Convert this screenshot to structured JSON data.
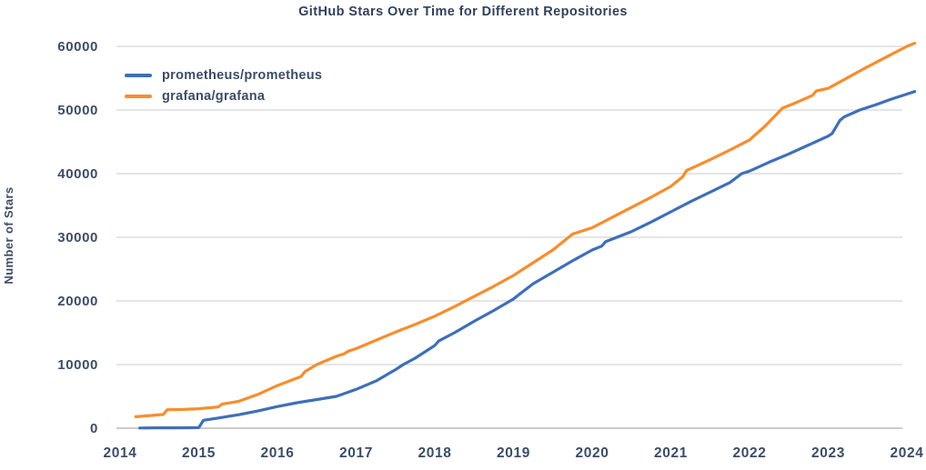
{
  "theme": {
    "background": "#ffffff",
    "title_color": "#34415a",
    "text_color": "#3d4c66",
    "grid_color": "#cbcbcb",
    "axis_color": "#979797"
  },
  "chart_data": {
    "type": "line",
    "title": "GitHub Stars Over Time for Different Repositories",
    "xlabel": "",
    "ylabel": "Number of Stars",
    "x_ticks": [
      2014,
      2015,
      2016,
      2017,
      2018,
      2019,
      2020,
      2021,
      2022,
      2023,
      2024
    ],
    "y_ticks": [
      0,
      10000,
      20000,
      30000,
      40000,
      50000,
      60000
    ],
    "xlim": [
      2014,
      2024.15
    ],
    "ylim": [
      0,
      60000
    ],
    "grid": "horizontal-only",
    "legend_position": "upper-left-inside",
    "series": [
      {
        "name": "prometheus/prometheus",
        "color": "#3f6fb7",
        "points": [
          [
            2014.25,
            30
          ],
          [
            2014.5,
            50
          ],
          [
            2014.75,
            60
          ],
          [
            2015.0,
            80
          ],
          [
            2015.06,
            1250
          ],
          [
            2015.25,
            1600
          ],
          [
            2015.5,
            2100
          ],
          [
            2015.75,
            2700
          ],
          [
            2016.0,
            3400
          ],
          [
            2016.25,
            4000
          ],
          [
            2016.5,
            4500
          ],
          [
            2016.75,
            5000
          ],
          [
            2017.0,
            6100
          ],
          [
            2017.25,
            7400
          ],
          [
            2017.5,
            9200
          ],
          [
            2017.6,
            10000
          ],
          [
            2017.75,
            11000
          ],
          [
            2018.0,
            13000
          ],
          [
            2018.05,
            13700
          ],
          [
            2018.25,
            15000
          ],
          [
            2018.5,
            16800
          ],
          [
            2018.75,
            18500
          ],
          [
            2019.0,
            20300
          ],
          [
            2019.07,
            21000
          ],
          [
            2019.25,
            22700
          ],
          [
            2019.5,
            24500
          ],
          [
            2019.75,
            26300
          ],
          [
            2020.0,
            28000
          ],
          [
            2020.12,
            28600
          ],
          [
            2020.17,
            29300
          ],
          [
            2020.5,
            30900
          ],
          [
            2020.75,
            32400
          ],
          [
            2021.0,
            34000
          ],
          [
            2021.25,
            35600
          ],
          [
            2021.5,
            37100
          ],
          [
            2021.75,
            38600
          ],
          [
            2021.9,
            40000
          ],
          [
            2022.0,
            40400
          ],
          [
            2022.25,
            41800
          ],
          [
            2022.5,
            43100
          ],
          [
            2022.75,
            44500
          ],
          [
            2023.0,
            45900
          ],
          [
            2023.05,
            46300
          ],
          [
            2023.15,
            48400
          ],
          [
            2023.2,
            48900
          ],
          [
            2023.4,
            50000
          ],
          [
            2023.6,
            50800
          ],
          [
            2023.8,
            51700
          ],
          [
            2024.0,
            52500
          ],
          [
            2024.1,
            52900
          ]
        ]
      },
      {
        "name": "grafana/grafana",
        "color": "#f78d2e",
        "points": [
          [
            2014.2,
            1800
          ],
          [
            2014.4,
            2000
          ],
          [
            2014.55,
            2150
          ],
          [
            2014.6,
            2900
          ],
          [
            2014.8,
            2950
          ],
          [
            2015.0,
            3050
          ],
          [
            2015.25,
            3350
          ],
          [
            2015.3,
            3800
          ],
          [
            2015.5,
            4200
          ],
          [
            2015.75,
            5300
          ],
          [
            2016.0,
            6700
          ],
          [
            2016.3,
            8100
          ],
          [
            2016.35,
            8900
          ],
          [
            2016.5,
            10000
          ],
          [
            2016.75,
            11300
          ],
          [
            2016.85,
            11700
          ],
          [
            2016.9,
            12100
          ],
          [
            2017.0,
            12500
          ],
          [
            2017.25,
            13800
          ],
          [
            2017.5,
            15100
          ],
          [
            2017.75,
            16300
          ],
          [
            2018.0,
            17600
          ],
          [
            2018.25,
            19100
          ],
          [
            2018.5,
            20700
          ],
          [
            2018.75,
            22300
          ],
          [
            2019.0,
            24000
          ],
          [
            2019.25,
            26000
          ],
          [
            2019.5,
            28000
          ],
          [
            2019.75,
            30500
          ],
          [
            2020.0,
            31500
          ],
          [
            2020.25,
            33100
          ],
          [
            2020.5,
            34700
          ],
          [
            2020.75,
            36300
          ],
          [
            2021.0,
            38000
          ],
          [
            2021.15,
            39500
          ],
          [
            2021.2,
            40500
          ],
          [
            2021.5,
            42200
          ],
          [
            2021.75,
            43700
          ],
          [
            2022.0,
            45300
          ],
          [
            2022.2,
            47500
          ],
          [
            2022.42,
            50300
          ],
          [
            2022.6,
            51200
          ],
          [
            2022.8,
            52300
          ],
          [
            2022.85,
            53000
          ],
          [
            2023.0,
            53400
          ],
          [
            2023.25,
            55100
          ],
          [
            2023.5,
            56800
          ],
          [
            2023.75,
            58400
          ],
          [
            2024.0,
            60000
          ],
          [
            2024.1,
            60500
          ]
        ]
      }
    ]
  }
}
